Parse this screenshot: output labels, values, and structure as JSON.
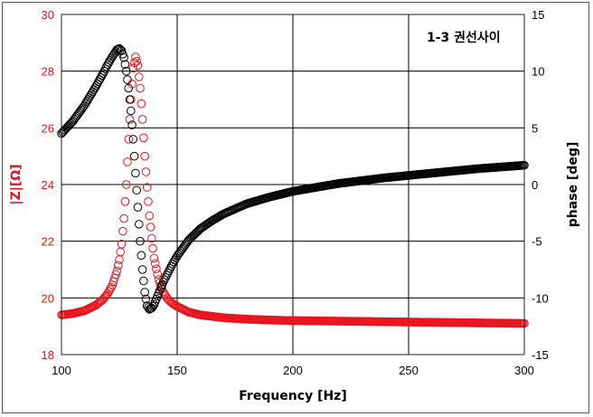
{
  "chart_data": {
    "type": "scatter",
    "title": "",
    "annotation": "1-3 권선사이",
    "xlabel": "Frequency [Hz]",
    "ylabel_left": "|Z|[Ω]",
    "ylabel_right": "phase [deg]",
    "xlim": [
      100,
      300
    ],
    "ylim_left": [
      18,
      30
    ],
    "ylim_right": [
      -15,
      15
    ],
    "x_ticks": [
      "100",
      "150",
      "200",
      "250",
      "300"
    ],
    "y_left_ticks": [
      "18",
      "20",
      "22",
      "24",
      "26",
      "28",
      "30"
    ],
    "y_right_ticks": [
      "-15",
      "-10",
      "-5",
      "0",
      "5",
      "10",
      "15"
    ],
    "grid": true,
    "colors": {
      "impedance": "#e8141c",
      "phase": "#000000",
      "left_axis_text": "#e0141e"
    },
    "series": [
      {
        "axis": "left",
        "marker": "circle-open",
        "x": [
          100,
          105,
          110,
          115,
          118,
          120,
          122,
          124,
          125,
          126,
          127,
          128,
          129,
          130,
          131,
          132,
          133,
          134,
          135,
          136,
          137,
          138,
          139,
          140,
          142,
          144,
          146,
          148,
          150,
          155,
          160,
          165,
          170,
          180,
          190,
          200,
          220,
          240,
          260,
          280,
          300
        ],
        "y": [
          19.4,
          19.45,
          19.55,
          19.75,
          19.95,
          20.15,
          20.45,
          20.95,
          21.35,
          21.9,
          22.8,
          24.0,
          25.6,
          27.0,
          28.1,
          28.5,
          28.2,
          27.4,
          26.3,
          25.0,
          23.9,
          22.9,
          22.1,
          21.4,
          20.65,
          20.2,
          19.95,
          19.8,
          19.7,
          19.5,
          19.4,
          19.35,
          19.3,
          19.25,
          19.22,
          19.2,
          19.18,
          19.16,
          19.14,
          19.12,
          19.1
        ]
      },
      {
        "axis": "right",
        "marker": "circle-open",
        "x": [
          100,
          105,
          110,
          115,
          118,
          120,
          122,
          124,
          125,
          126,
          127,
          128,
          129,
          130,
          131,
          132,
          133,
          134,
          135,
          136,
          137,
          138,
          139,
          140,
          142,
          144,
          146,
          148,
          150,
          155,
          160,
          165,
          170,
          180,
          190,
          200,
          220,
          240,
          260,
          280,
          300
        ],
        "y": [
          4.5,
          5.6,
          7.0,
          8.7,
          9.8,
          10.6,
          11.3,
          11.9,
          12.0,
          11.8,
          11.2,
          10.0,
          8.5,
          6.5,
          4.0,
          1.0,
          -2.0,
          -5.0,
          -7.5,
          -9.5,
          -10.7,
          -11.0,
          -10.9,
          -10.6,
          -9.6,
          -8.6,
          -7.8,
          -7.0,
          -6.3,
          -4.9,
          -3.9,
          -3.2,
          -2.6,
          -1.7,
          -1.1,
          -0.6,
          0.1,
          0.6,
          1.0,
          1.4,
          1.7
        ]
      }
    ]
  }
}
